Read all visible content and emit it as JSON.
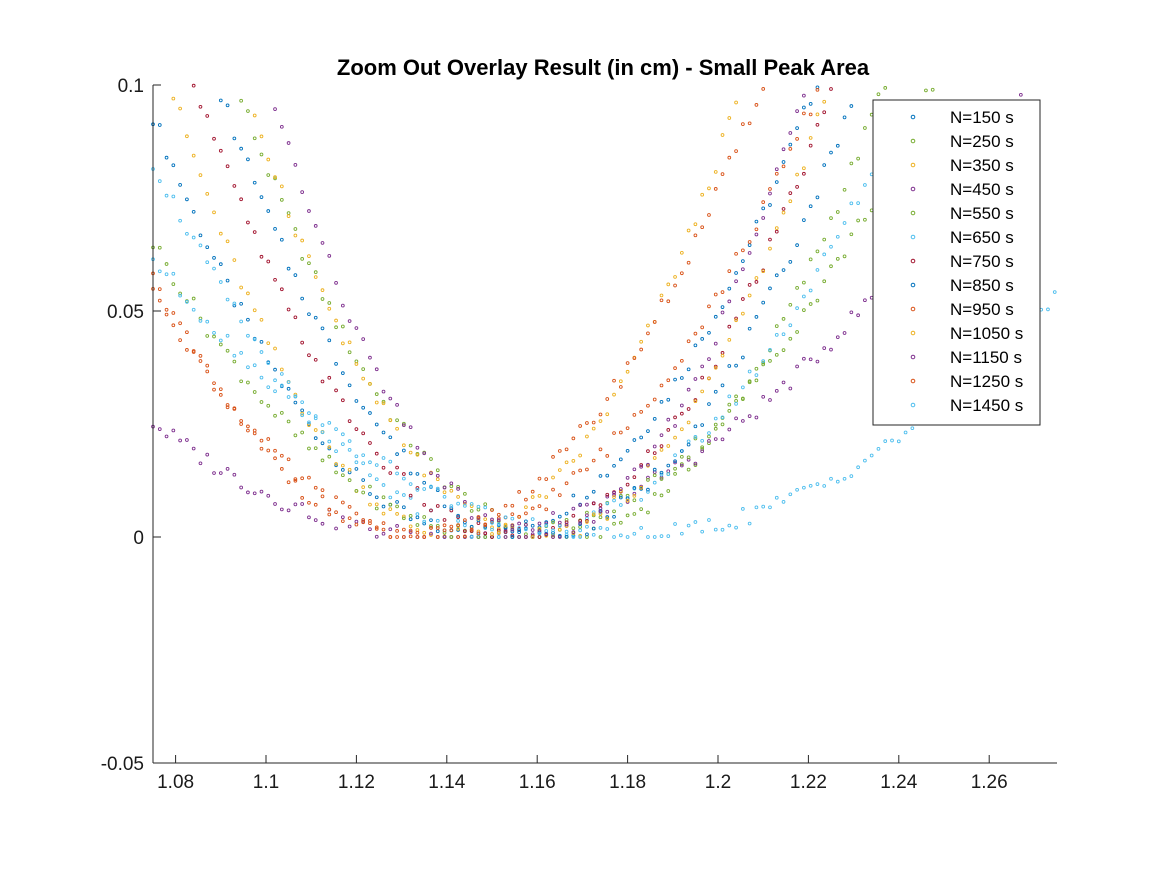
{
  "chart_data": {
    "type": "scatter",
    "title": "Zoom Out Overlay Result (in cm) - Small Peak Area",
    "xlabel": "",
    "ylabel": "",
    "xlim": [
      1.075,
      1.275
    ],
    "ylim": [
      -0.05,
      0.1
    ],
    "x_ticks": [
      1.08,
      1.1,
      1.12,
      1.14,
      1.16,
      1.18,
      1.2,
      1.22,
      1.24,
      1.26
    ],
    "y_ticks": [
      -0.05,
      0,
      0.05,
      0.1
    ],
    "x_tick_labels": [
      "1.08",
      "1.1",
      "1.12",
      "1.14",
      "1.16",
      "1.18",
      "1.2",
      "1.22",
      "1.24",
      "1.26"
    ],
    "y_tick_labels": [
      "-0.05",
      "0",
      "0.05",
      "0.1"
    ],
    "grid": false,
    "legend_position": "top-right",
    "x_step": 0.0015,
    "series": [
      {
        "name": "N=150 s",
        "color": "#0072BD",
        "vertex": 1.147,
        "coef": 18.0
      },
      {
        "name": "N=250 s",
        "color": "#77AC30",
        "vertex": 1.165,
        "coef": 19.5
      },
      {
        "name": "N=350 s",
        "color": "#EDB120",
        "vertex": 1.142,
        "coef": 25.0
      },
      {
        "name": "N=450 s",
        "color": "#7E2F8E",
        "vertex": 1.14,
        "coef": 6.0
      },
      {
        "name": "N=550 s",
        "color": "#77AC30",
        "vertex": 1.152,
        "coef": 11.0
      },
      {
        "name": "N=650 s",
        "color": "#4DBEEE",
        "vertex": 1.155,
        "coef": 13.0
      },
      {
        "name": "N=750 s",
        "color": "#A2142F",
        "vertex": 1.155,
        "coef": 20.0
      },
      {
        "name": "N=850 s",
        "color": "#0072BD",
        "vertex": 1.16,
        "coef": 20.0
      },
      {
        "name": "N=950 s",
        "color": "#D95319",
        "vertex": 1.138,
        "coef": 14.0
      },
      {
        "name": "N=1050 s",
        "color": "#EDB120",
        "vertex": 1.16,
        "coef": 24.0
      },
      {
        "name": "N=1150 s",
        "color": "#7E2F8E",
        "vertex": 1.16,
        "coef": 28.5
      },
      {
        "name": "N=1250 s",
        "color": "#D95319",
        "vertex": 1.133,
        "coef": 17.0
      },
      {
        "name": "N=1450 s",
        "color": "#4DBEEE",
        "vertex": 1.178,
        "coef": 5.8
      }
    ]
  }
}
